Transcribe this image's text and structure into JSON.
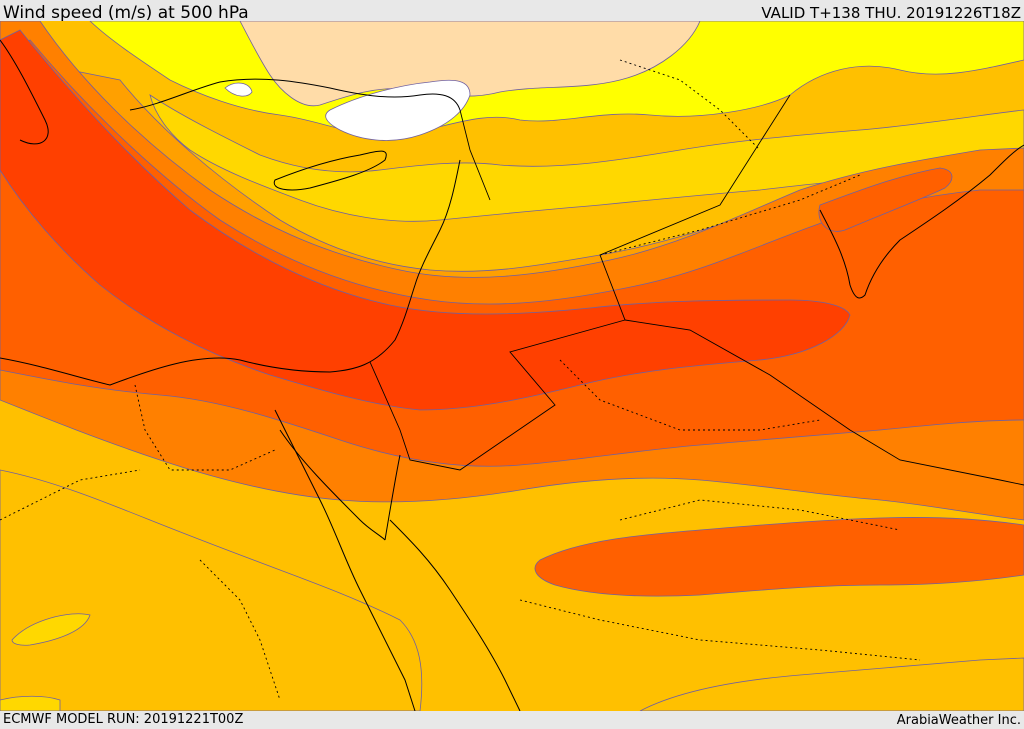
{
  "header": {
    "title": "Wind speed (m/s) at 500 hPa",
    "valid": "VALID T+138 THU. 20191226T18Z"
  },
  "footer": {
    "model_run": "ECMWF MODEL RUN: 20191221T00Z",
    "credit": "ArabiaWeather Inc."
  },
  "map": {
    "field": "wind speed at 500 hPa",
    "colors": {
      "very_low": "#ffffff",
      "low": "#ffdca8",
      "yellow": "#ffff00",
      "gold": "#ffd800",
      "amber": "#ffc000",
      "orange": "#ffa000",
      "dark_orange": "#ff8000",
      "red_orange": "#ff6000",
      "red": "#ff4000",
      "contour": "#7060a0",
      "coastline": "#000000"
    }
  }
}
